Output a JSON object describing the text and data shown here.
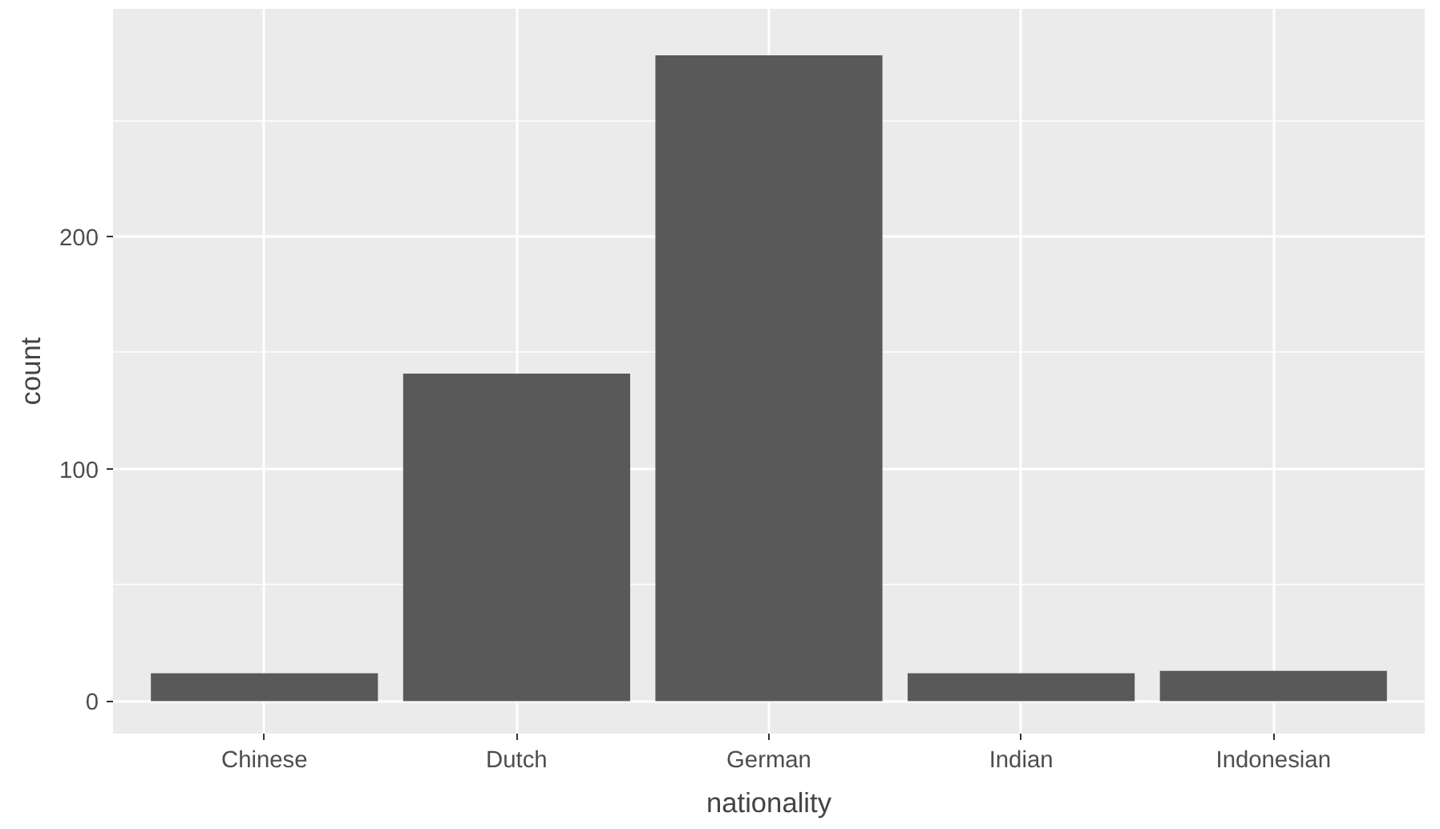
{
  "chart_data": {
    "type": "bar",
    "xlabel": "nationality",
    "ylabel": "count",
    "categories": [
      "Chinese",
      "Dutch",
      "German",
      "Indian",
      "Indonesian"
    ],
    "values": [
      12,
      141,
      278,
      12,
      13
    ],
    "color": "#595959",
    "ylim": [
      -14,
      298
    ],
    "yticks": [
      0,
      100,
      200
    ],
    "grid": true
  }
}
